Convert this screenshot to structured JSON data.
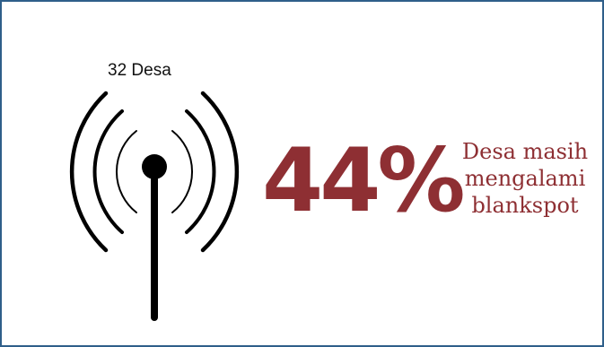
{
  "signal": {
    "count_label": "32 Desa",
    "icon": "signal-tower-icon"
  },
  "stat": {
    "value": "44%",
    "description_line1": "Desa masih",
    "description_line2": "mengalami",
    "description_line3": "blankspot"
  },
  "colors": {
    "accent": "#8e2f33",
    "border": "#2f5f8a",
    "icon": "#000000"
  }
}
